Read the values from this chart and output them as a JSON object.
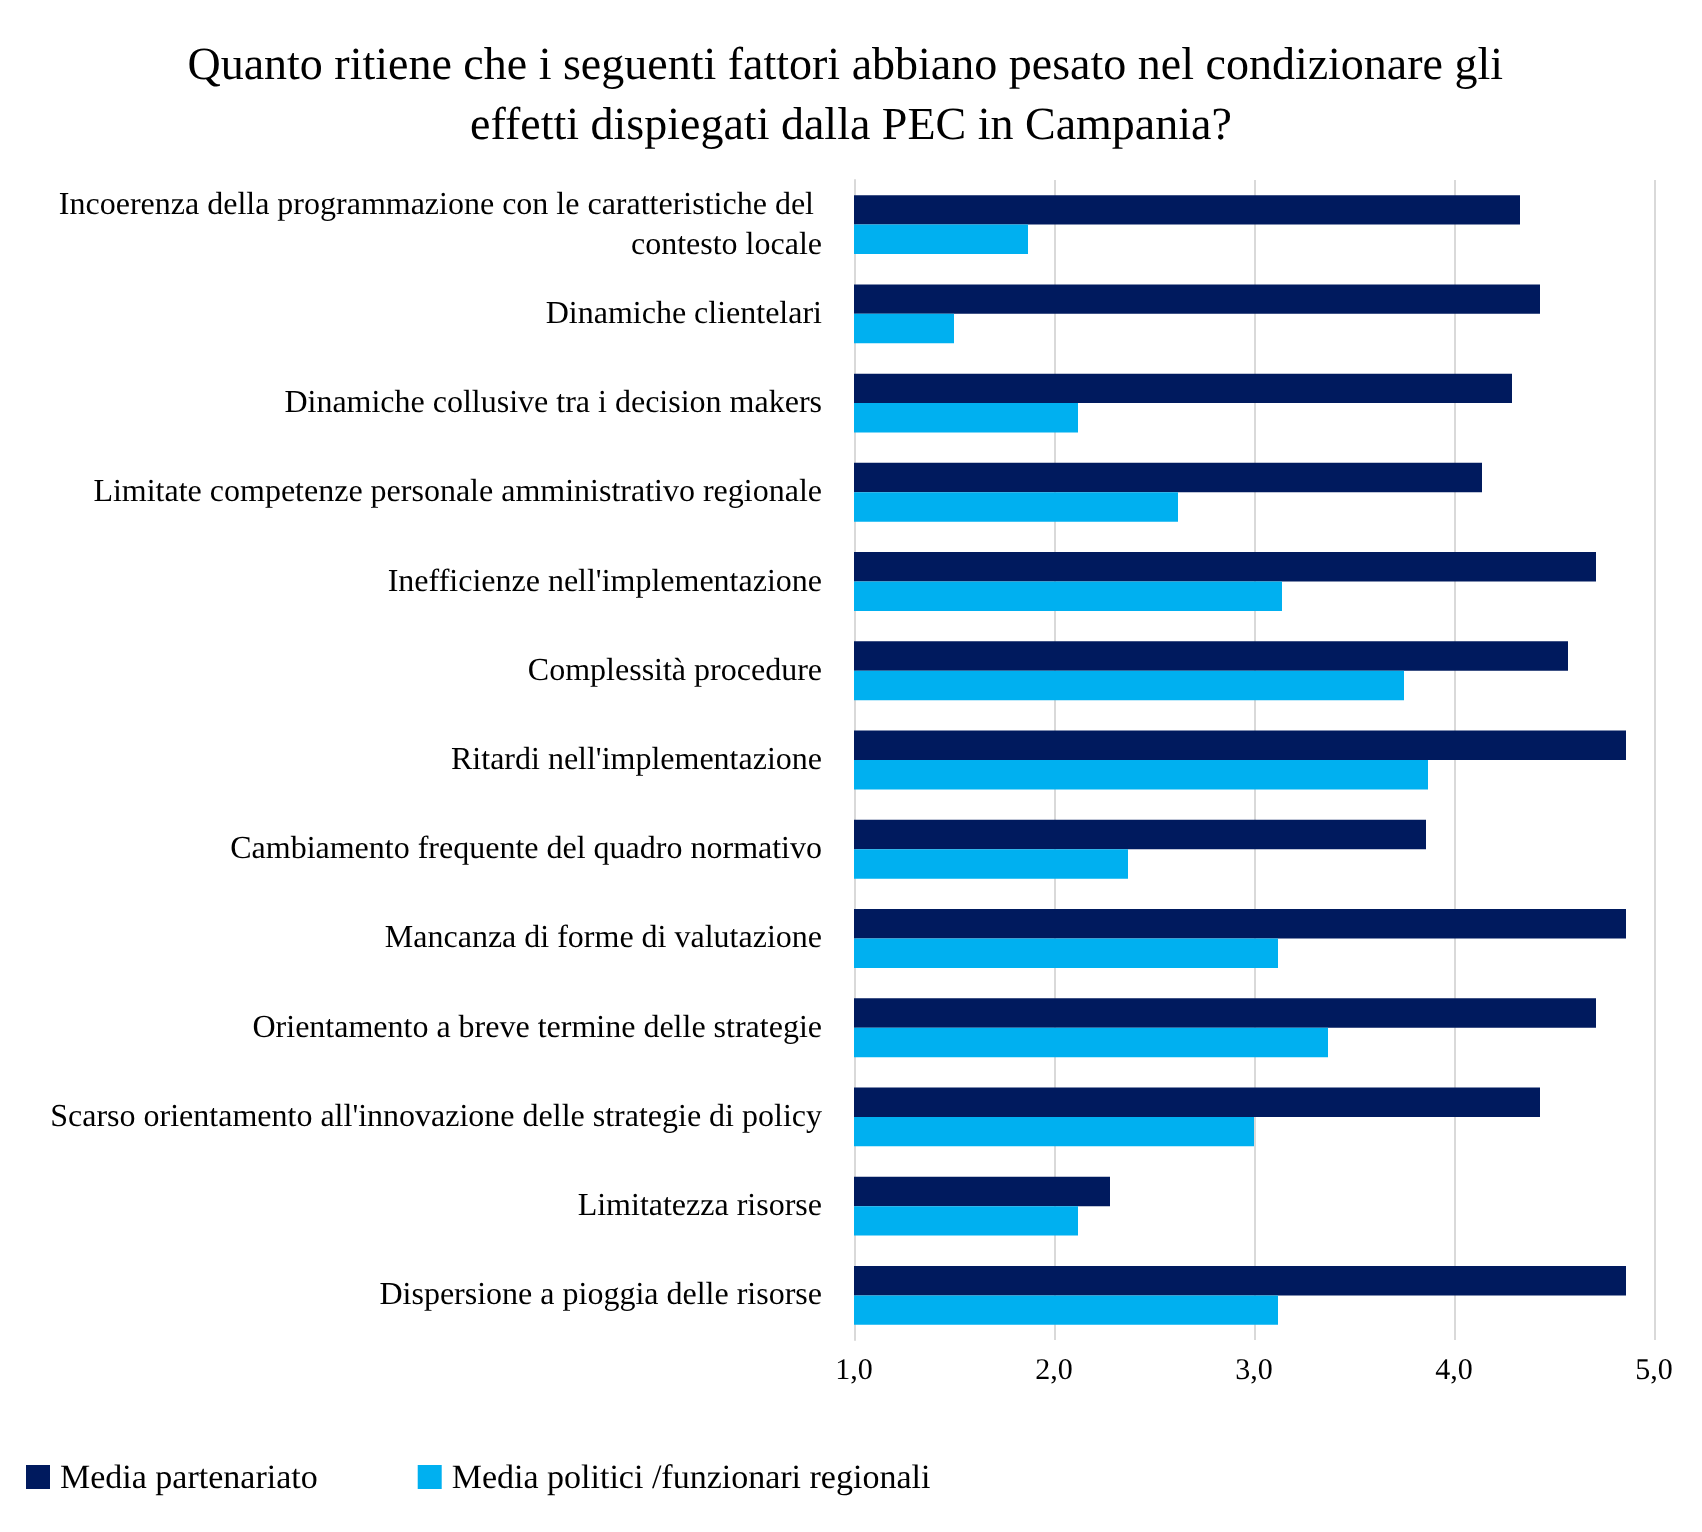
{
  "chart_data": {
    "type": "bar",
    "orientation": "horizontal",
    "title": "Quanto ritiene che i seguenti fattori abbiano pesato nel condizionare gli effetti dispiegati dalla PEC in Campania?",
    "categories": [
      "Incoerenza della programmazione con le caratteristiche del contesto locale",
      "Dinamiche clientelari",
      "Dinamiche collusive tra i decision makers",
      "Limitate competenze personale amministrativo regionale",
      "Inefficienze nell'implementazione",
      "Complessità procedure",
      "Ritardi nell'implementazione",
      "Cambiamento frequente del quadro normativo",
      "Mancanza di forme di valutazione",
      "Orientamento a breve termine delle strategie",
      "Scarso orientamento all'innovazione delle strategie di policy",
      "Limitatezza risorse",
      "Dispersione a pioggia delle risorse"
    ],
    "series": [
      {
        "name": "Media partenariato",
        "color": "#001a5e",
        "values": [
          4.33,
          4.43,
          4.29,
          4.14,
          4.71,
          4.57,
          4.86,
          3.86,
          4.86,
          4.71,
          4.43,
          2.28,
          4.86
        ]
      },
      {
        "name": "Media politici /funzionari regionali",
        "color": "#00b0f0",
        "values": [
          1.87,
          1.5,
          2.12,
          2.62,
          3.14,
          3.75,
          3.87,
          2.37,
          3.12,
          3.37,
          3.0,
          2.12,
          3.12
        ]
      }
    ],
    "xlim": [
      1,
      5
    ],
    "xticks": [
      {
        "value": 1,
        "label": "1,0"
      },
      {
        "value": 2,
        "label": "2,0"
      },
      {
        "value": 3,
        "label": "3,0"
      },
      {
        "value": 4,
        "label": "4,0"
      },
      {
        "value": 5,
        "label": "5,0"
      }
    ],
    "grid": "x",
    "legend": "bottom"
  }
}
